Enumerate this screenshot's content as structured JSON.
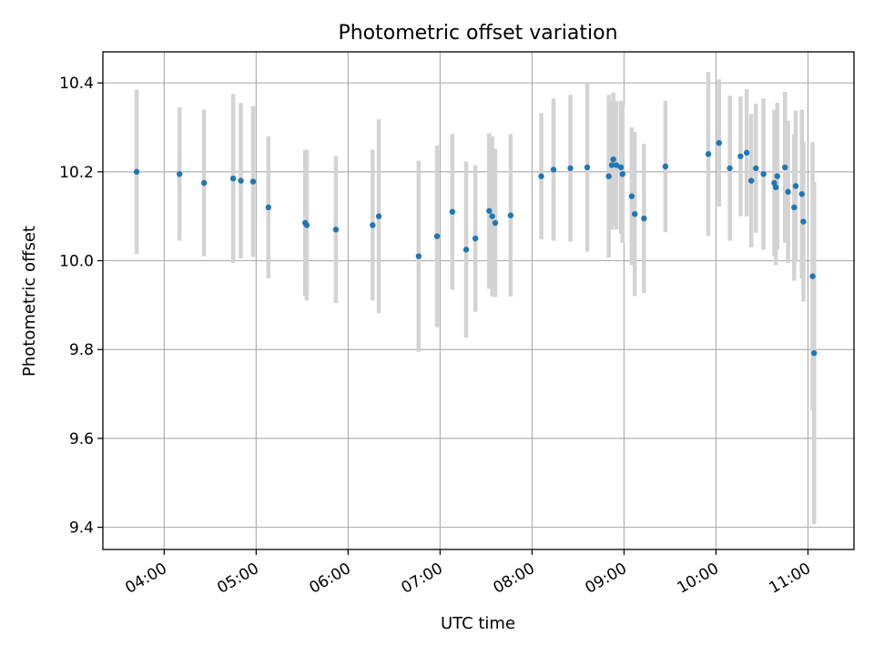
{
  "chart_data": {
    "type": "scatter",
    "title": "Photometric offset variation",
    "xlabel": "UTC time",
    "ylabel": "Photometric offset",
    "xlim": [
      "03:20",
      "11:30"
    ],
    "ylim": [
      9.35,
      10.47
    ],
    "x_ticks": [
      "04:00",
      "05:00",
      "06:00",
      "07:00",
      "08:00",
      "09:00",
      "10:00",
      "11:00"
    ],
    "y_ticks": [
      9.4,
      9.6,
      9.8,
      10.0,
      10.2,
      10.4
    ],
    "grid": true,
    "point_color": "#1f77b4",
    "errorbar_color": "#d3d3d3",
    "series": [
      {
        "x": [
          "03:42",
          "04:10",
          "04:26",
          "04:45",
          "04:50",
          "04:58",
          "05:08",
          "05:32",
          "05:33",
          "05:52",
          "06:16",
          "06:20",
          "06:46",
          "06:58",
          "07:08",
          "07:17",
          "07:23",
          "07:32",
          "07:34",
          "07:36",
          "07:46",
          "08:06",
          "08:14",
          "08:25",
          "08:36",
          "08:50",
          "08:52",
          "08:53",
          "08:55",
          "08:58",
          "08:59",
          "09:05",
          "09:07",
          "09:13",
          "09:27",
          "09:55",
          "10:02",
          "10:09",
          "10:16",
          "10:20",
          "10:23",
          "10:26",
          "10:31",
          "10:38",
          "10:39",
          "10:40",
          "10:45",
          "10:47",
          "10:51",
          "10:52",
          "10:56",
          "10:57",
          "11:03",
          "11:04"
        ],
        "y": [
          10.2,
          10.195,
          10.175,
          10.185,
          10.18,
          10.178,
          10.12,
          10.085,
          10.08,
          10.07,
          10.08,
          10.1,
          10.01,
          10.055,
          10.11,
          10.025,
          10.05,
          10.112,
          10.1,
          10.085,
          10.102,
          10.19,
          10.205,
          10.208,
          10.21,
          10.19,
          10.215,
          10.228,
          10.215,
          10.21,
          10.195,
          10.145,
          10.105,
          10.095,
          10.212,
          10.24,
          10.265,
          10.208,
          10.235,
          10.243,
          10.18,
          10.208,
          10.195,
          10.175,
          10.165,
          10.19,
          10.21,
          10.155,
          10.12,
          10.168,
          10.15,
          10.088,
          9.965,
          9.792
        ],
        "yerr": [
          0.185,
          0.15,
          0.165,
          0.19,
          0.175,
          0.17,
          0.16,
          0.165,
          0.17,
          0.165,
          0.17,
          0.218,
          0.215,
          0.205,
          0.175,
          0.198,
          0.165,
          0.175,
          0.18,
          0.167,
          0.183,
          0.142,
          0.16,
          0.165,
          0.19,
          0.183,
          0.145,
          0.15,
          0.145,
          0.15,
          0.155,
          0.155,
          0.185,
          0.168,
          0.148,
          0.185,
          0.143,
          0.163,
          0.135,
          0.143,
          0.15,
          0.145,
          0.17,
          0.165,
          0.175,
          0.165,
          0.17,
          0.16,
          0.165,
          0.17,
          0.19,
          0.18,
          0.302,
          0.385
        ]
      }
    ]
  }
}
